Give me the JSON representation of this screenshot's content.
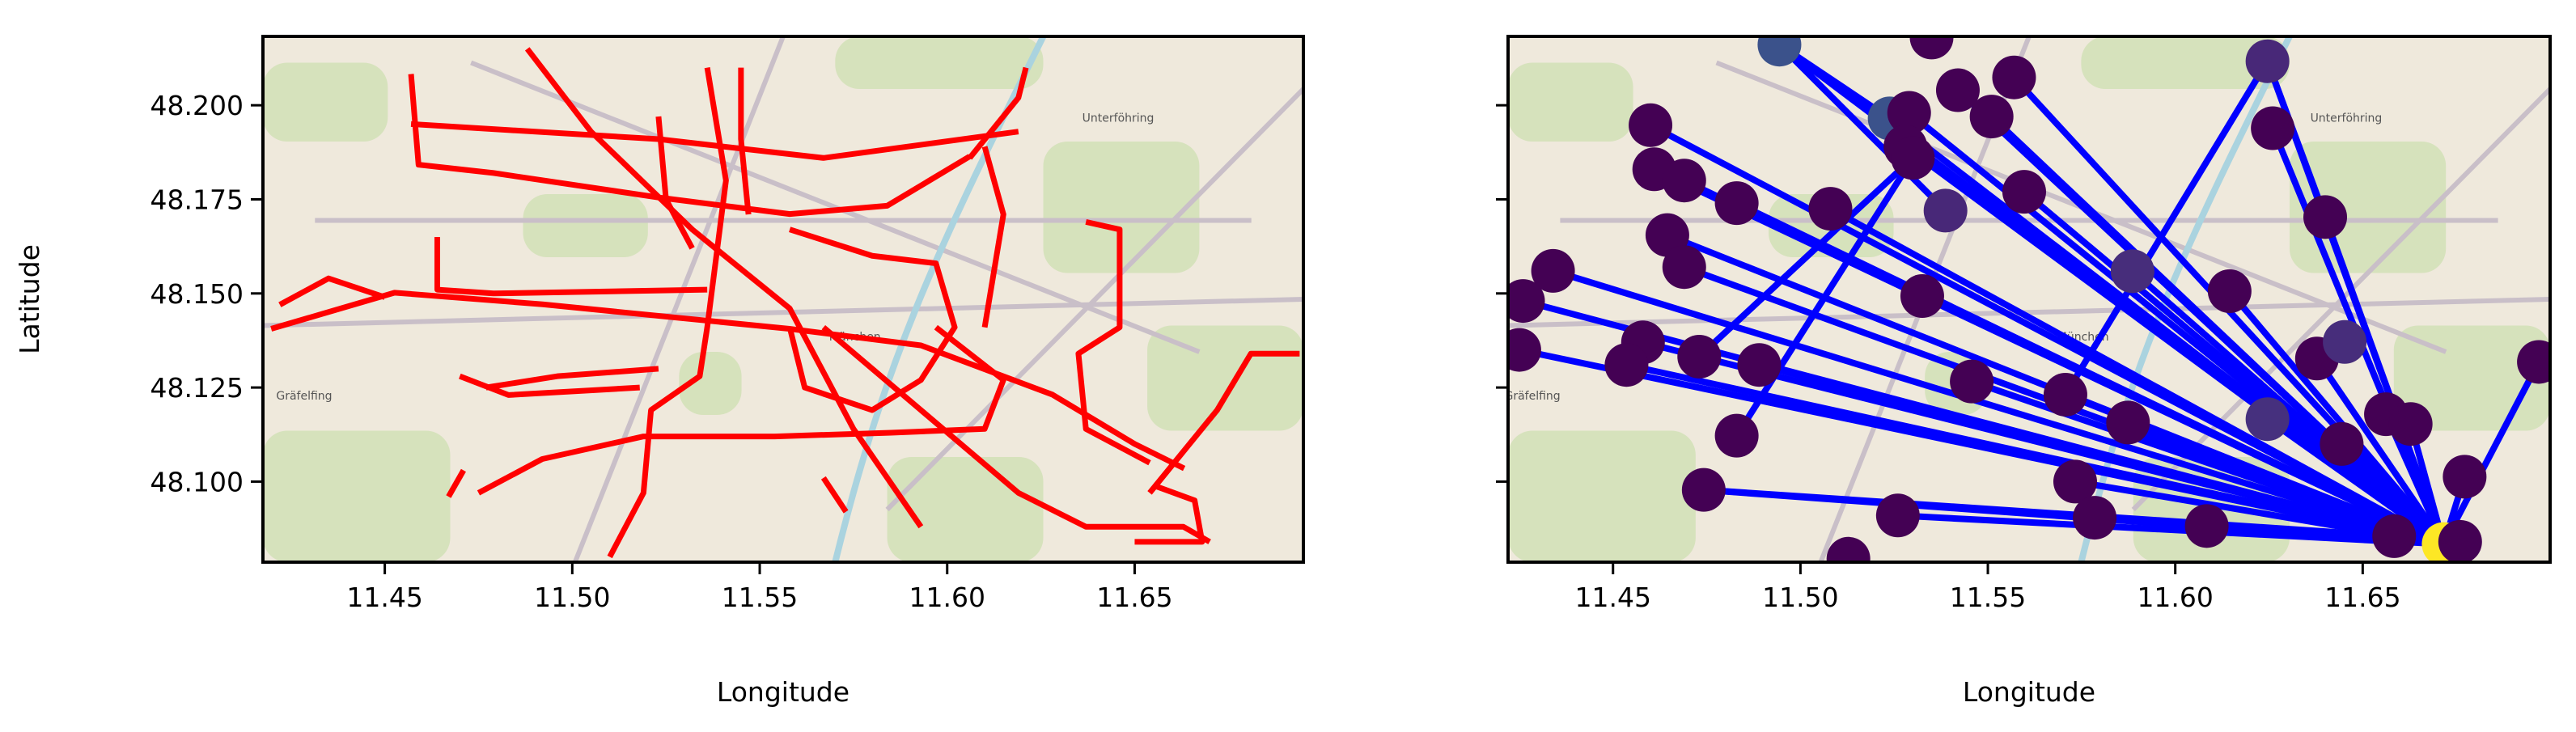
{
  "chart_data": [
    {
      "type": "line",
      "color": "#ff0000",
      "xlabel": "Longitude",
      "ylabel": "Latitude",
      "xlim": [
        11.4175,
        11.695
      ],
      "ylim": [
        48.0786,
        48.2183
      ],
      "xticks": [
        11.45,
        {
          "value": 11.5,
          "label": "11.50"
        },
        11.55,
        {
          "value": 11.6,
          "label": "11.60"
        },
        11.65
      ],
      "yticks": [
        {
          "value": 48.1,
          "label": "48.100"
        },
        48.125,
        {
          "value": 48.15,
          "label": "48.150"
        },
        48.175,
        {
          "value": 48.2,
          "label": "48.200"
        }
      ],
      "map_labels": [
        {
          "text": "München",
          "lon": 11.5754,
          "lat": 48.1375
        },
        {
          "text": "Unterföhring",
          "lon": 11.6456,
          "lat": 48.1956
        },
        {
          "text": "Gräfelfing",
          "lon": 11.4285,
          "lat": 48.1218
        }
      ],
      "series": [
        {
          "x": [
            11.4197,
            11.4526,
            11.4921,
            11.5579,
            11.593,
            11.6281,
            11.65,
            11.6632
          ],
          "values": [
            48.1406,
            48.1502,
            48.1471,
            48.1406,
            48.1362,
            48.1231,
            48.11,
            48.1035
          ]
        },
        {
          "x": [
            11.457,
            11.459,
            11.479,
            11.523,
            11.558,
            11.584,
            11.606
          ],
          "values": [
            48.2083,
            48.1842,
            48.182,
            48.1755,
            48.1711,
            48.1733,
            48.1864
          ]
        },
        {
          "x": [
            11.457,
            11.523,
            11.567,
            11.619
          ],
          "values": [
            48.195,
            48.191,
            48.186,
            48.193
          ]
        },
        {
          "x": [
            11.488,
            11.505,
            11.532,
            11.558,
            11.575,
            11.593
          ],
          "values": [
            48.215,
            48.193,
            48.167,
            48.146,
            48.114,
            48.088
          ]
        },
        {
          "x": [
            11.536,
            11.541,
            11.536,
            11.534,
            11.521,
            11.519,
            11.51
          ],
          "values": [
            48.21,
            48.18,
            48.141,
            48.128,
            48.119,
            48.097,
            48.08
          ]
        },
        {
          "x": [
            11.475,
            11.492,
            11.519,
            11.554,
            11.585,
            11.61,
            11.615,
            11.597
          ],
          "values": [
            48.097,
            48.106,
            48.112,
            48.112,
            48.113,
            48.114,
            48.127,
            48.141
          ]
        },
        {
          "x": [
            11.558,
            11.58,
            11.597,
            11.602,
            11.593,
            11.58,
            11.562,
            11.558
          ],
          "values": [
            48.167,
            48.16,
            48.158,
            48.141,
            48.127,
            48.119,
            48.125,
            48.141
          ]
        },
        {
          "x": [
            11.567,
            11.593,
            11.619,
            11.637,
            11.663,
            11.67
          ],
          "values": [
            48.141,
            48.119,
            48.097,
            48.088,
            48.088,
            48.084
          ]
        },
        {
          "x": [
            11.464,
            11.464,
            11.479,
            11.536
          ],
          "values": [
            48.165,
            48.151,
            48.15,
            48.151
          ]
        },
        {
          "x": [
            11.422,
            11.435,
            11.45
          ],
          "values": [
            48.147,
            48.154,
            48.149
          ]
        },
        {
          "x": [
            11.47,
            11.483,
            11.518
          ],
          "values": [
            48.128,
            48.123,
            48.125
          ]
        },
        {
          "x": [
            11.477,
            11.496,
            11.523
          ],
          "values": [
            48.125,
            48.128,
            48.13
          ]
        },
        {
          "x": [
            11.637,
            11.646,
            11.646,
            11.635,
            11.637,
            11.654
          ],
          "values": [
            48.169,
            48.167,
            48.141,
            48.134,
            48.114,
            48.105
          ]
        },
        {
          "x": [
            11.654,
            11.672,
            11.681,
            11.694
          ],
          "values": [
            48.097,
            48.119,
            48.134,
            48.134
          ]
        },
        {
          "x": [
            11.65,
            11.668,
            11.666,
            11.655
          ],
          "values": [
            48.084,
            48.084,
            48.095,
            48.099
          ]
        },
        {
          "x": [
            11.61,
            11.615,
            11.61
          ],
          "values": [
            48.189,
            48.171,
            48.141
          ]
        },
        {
          "x": [
            11.606,
            11.619,
            11.621
          ],
          "values": [
            48.186,
            48.202,
            48.21
          ]
        },
        {
          "x": [
            11.545,
            11.545,
            11.547
          ],
          "values": [
            48.21,
            48.191,
            48.171
          ]
        },
        {
          "x": [
            11.523,
            11.525,
            11.532
          ],
          "values": [
            48.197,
            48.175,
            48.162
          ]
        },
        {
          "x": [
            11.567,
            11.573
          ],
          "values": [
            48.101,
            48.092
          ]
        },
        {
          "x": [
            11.471,
            11.467
          ],
          "values": [
            48.103,
            48.096
          ]
        }
      ]
    },
    {
      "type": "network",
      "edge_color": "#0000ff",
      "xlabel": "Longitude",
      "xlim": [
        11.422,
        11.7
      ],
      "ylim": [
        48.0786,
        48.2183
      ],
      "xticks": [
        11.45,
        {
          "value": 11.5,
          "label": "11.50"
        },
        11.55,
        {
          "value": 11.6,
          "label": "11.60"
        },
        11.65
      ],
      "yticks": [
        48.1,
        48.125,
        48.15,
        48.175,
        48.2
      ],
      "ytick_labels": false,
      "nodes": {
        "x": [
          11.4944,
          11.5238,
          11.535,
          11.46,
          11.461,
          11.469,
          11.483,
          11.4645,
          11.469,
          11.434,
          11.426,
          11.425,
          11.458,
          11.4536,
          11.473,
          11.489,
          11.508,
          11.529,
          11.528,
          11.53,
          11.542,
          11.551,
          11.557,
          11.5387,
          11.5597,
          11.5325,
          11.5457,
          11.5707,
          11.5886,
          11.6145,
          11.5874,
          11.6246,
          11.6246,
          11.626,
          11.64,
          11.6378,
          11.6452,
          11.6562,
          11.6628,
          11.6444,
          11.5733,
          11.5785,
          11.6084,
          11.526,
          11.4742,
          11.483,
          11.5128,
          11.6584,
          11.6716,
          11.6772,
          11.676,
          11.697
        ],
        "values": [
          48.2161,
          48.1965,
          48.218,
          48.1947,
          48.183,
          48.18,
          48.174,
          48.1655,
          48.157,
          48.156,
          48.148,
          48.135,
          48.137,
          48.131,
          48.1332,
          48.131,
          48.1725,
          48.198,
          48.189,
          48.186,
          48.204,
          48.197,
          48.2074,
          48.172,
          48.177,
          48.1493,
          48.1266,
          48.1231,
          48.1559,
          48.1506,
          48.1157,
          48.1166,
          48.2117,
          48.1939,
          48.1703,
          48.1327,
          48.1371,
          48.1179,
          48.1153,
          48.11,
          48.1,
          48.0904,
          48.0882,
          48.091,
          48.0978,
          48.1122,
          48.0795,
          48.0855,
          48.0834,
          48.1013,
          48.084,
          48.1318
        ],
        "colors": [
          "#3b528b",
          "#3b528b",
          "#440154",
          "#440154",
          "#440154",
          "#440154",
          "#440154",
          "#440154",
          "#440154",
          "#440154",
          "#440154",
          "#440154",
          "#440154",
          "#440154",
          "#440154",
          "#440154",
          "#440154",
          "#440154",
          "#440154",
          "#440154",
          "#440154",
          "#440154",
          "#440154",
          "#482878",
          "#440154",
          "#440154",
          "#440154",
          "#440154",
          "#472d7b",
          "#440154",
          "#440154",
          "#46307e",
          "#482878",
          "#440154",
          "#440154",
          "#440154",
          "#472d7b",
          "#440154",
          "#440154",
          "#440154",
          "#440154",
          "#440154",
          "#440154",
          "#440154",
          "#440154",
          "#440154",
          "#440154",
          "#440154",
          "#fde725",
          "#440154",
          "#440154",
          "#440154"
        ]
      },
      "edges": [
        [
          48,
          0
        ],
        [
          48,
          1
        ],
        [
          48,
          3
        ],
        [
          48,
          4
        ],
        [
          48,
          5
        ],
        [
          48,
          6
        ],
        [
          48,
          7
        ],
        [
          48,
          8
        ],
        [
          48,
          9
        ],
        [
          48,
          10
        ],
        [
          48,
          11
        ],
        [
          48,
          12
        ],
        [
          48,
          13
        ],
        [
          48,
          15
        ],
        [
          48,
          16
        ],
        [
          48,
          17
        ],
        [
          48,
          18
        ],
        [
          48,
          20
        ],
        [
          48,
          21
        ],
        [
          48,
          22
        ],
        [
          48,
          24
        ],
        [
          48,
          25
        ],
        [
          48,
          26
        ],
        [
          48,
          27
        ],
        [
          48,
          28
        ],
        [
          48,
          29
        ],
        [
          48,
          30
        ],
        [
          48,
          31
        ],
        [
          48,
          32
        ],
        [
          48,
          33
        ],
        [
          48,
          34
        ],
        [
          48,
          35
        ],
        [
          48,
          37
        ],
        [
          48,
          38
        ],
        [
          48,
          39
        ],
        [
          48,
          40
        ],
        [
          48,
          41
        ],
        [
          48,
          42
        ],
        [
          48,
          43
        ],
        [
          48,
          44
        ],
        [
          48,
          47
        ],
        [
          48,
          49
        ],
        [
          48,
          51
        ],
        [
          0,
          1
        ],
        [
          0,
          23
        ],
        [
          14,
          19
        ],
        [
          32,
          27
        ],
        [
          32,
          34
        ],
        [
          45,
          19
        ],
        [
          44,
          47
        ]
      ]
    }
  ]
}
